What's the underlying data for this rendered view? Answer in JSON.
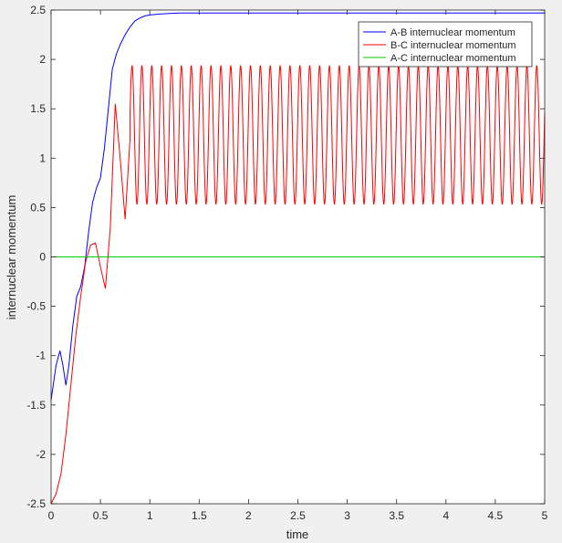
{
  "chart_data": {
    "type": "line",
    "xlabel": "time",
    "ylabel": "internuclear momentum",
    "xlim": [
      0,
      5
    ],
    "ylim": [
      -2.5,
      2.5
    ],
    "xticks": [
      0,
      0.5,
      1,
      1.5,
      2,
      2.5,
      3,
      3.5,
      4,
      4.5,
      5
    ],
    "xtick_labels": [
      "0",
      "0.5",
      "1",
      "1.5",
      "2",
      "2.5",
      "3",
      "3.5",
      "4",
      "4.5",
      "5"
    ],
    "yticks": [
      -2.5,
      -2,
      -1.5,
      -1,
      -0.5,
      0,
      0.5,
      1,
      1.5,
      2,
      2.5
    ],
    "ytick_labels": [
      "-2.5",
      "-2",
      "-1.5",
      "-1",
      "-0.5",
      "0",
      "0.5",
      "1",
      "1.5",
      "2",
      "2.5"
    ],
    "grid": false,
    "legend_position": "top-right",
    "series": [
      {
        "name": "A-B internuclear momentum",
        "color": "#0000ff",
        "x": [
          0,
          0.05,
          0.09,
          0.12,
          0.15,
          0.18,
          0.22,
          0.26,
          0.3,
          0.34,
          0.38,
          0.42,
          0.46,
          0.5,
          0.54,
          0.58,
          0.62,
          0.66,
          0.7,
          0.75,
          0.8,
          0.85,
          0.9,
          0.95,
          1.0,
          1.1,
          1.2,
          1.3,
          1.5,
          2,
          3,
          4,
          5
        ],
        "y": [
          -1.45,
          -1.1,
          -0.95,
          -1.1,
          -1.3,
          -1.1,
          -0.7,
          -0.4,
          -0.3,
          -0.1,
          0.25,
          0.55,
          0.7,
          0.8,
          1.1,
          1.5,
          1.9,
          2.05,
          2.15,
          2.25,
          2.33,
          2.39,
          2.42,
          2.44,
          2.45,
          2.46,
          2.465,
          2.47,
          2.47,
          2.47,
          2.47,
          2.47,
          2.47
        ]
      },
      {
        "name": "B-C internuclear momentum",
        "color": "#ff0000",
        "x": [
          0,
          0.05,
          0.1,
          0.15,
          0.2,
          0.25,
          0.3,
          0.35,
          0.4,
          0.45,
          0.5,
          0.55,
          0.6,
          0.65,
          0.7,
          0.75,
          0.8,
          0.85
        ],
        "y": [
          -2.5,
          -2.4,
          -2.2,
          -1.8,
          -1.3,
          -0.8,
          -0.4,
          -0.05,
          0.12,
          0.14,
          -0.1,
          -0.32,
          0.3,
          1.55,
          1.0,
          0.38,
          1.2,
          1.87
        ],
        "oscillation": {
          "start": 0.8,
          "end": 5.0,
          "period": 0.1,
          "min": 0.53,
          "max": 1.94,
          "note": "steady oscillation after t≈0.8"
        }
      },
      {
        "name": "A-C internuclear momentum",
        "color": "#00cc00",
        "x": [
          0,
          5
        ],
        "y": [
          0,
          0
        ]
      }
    ]
  }
}
